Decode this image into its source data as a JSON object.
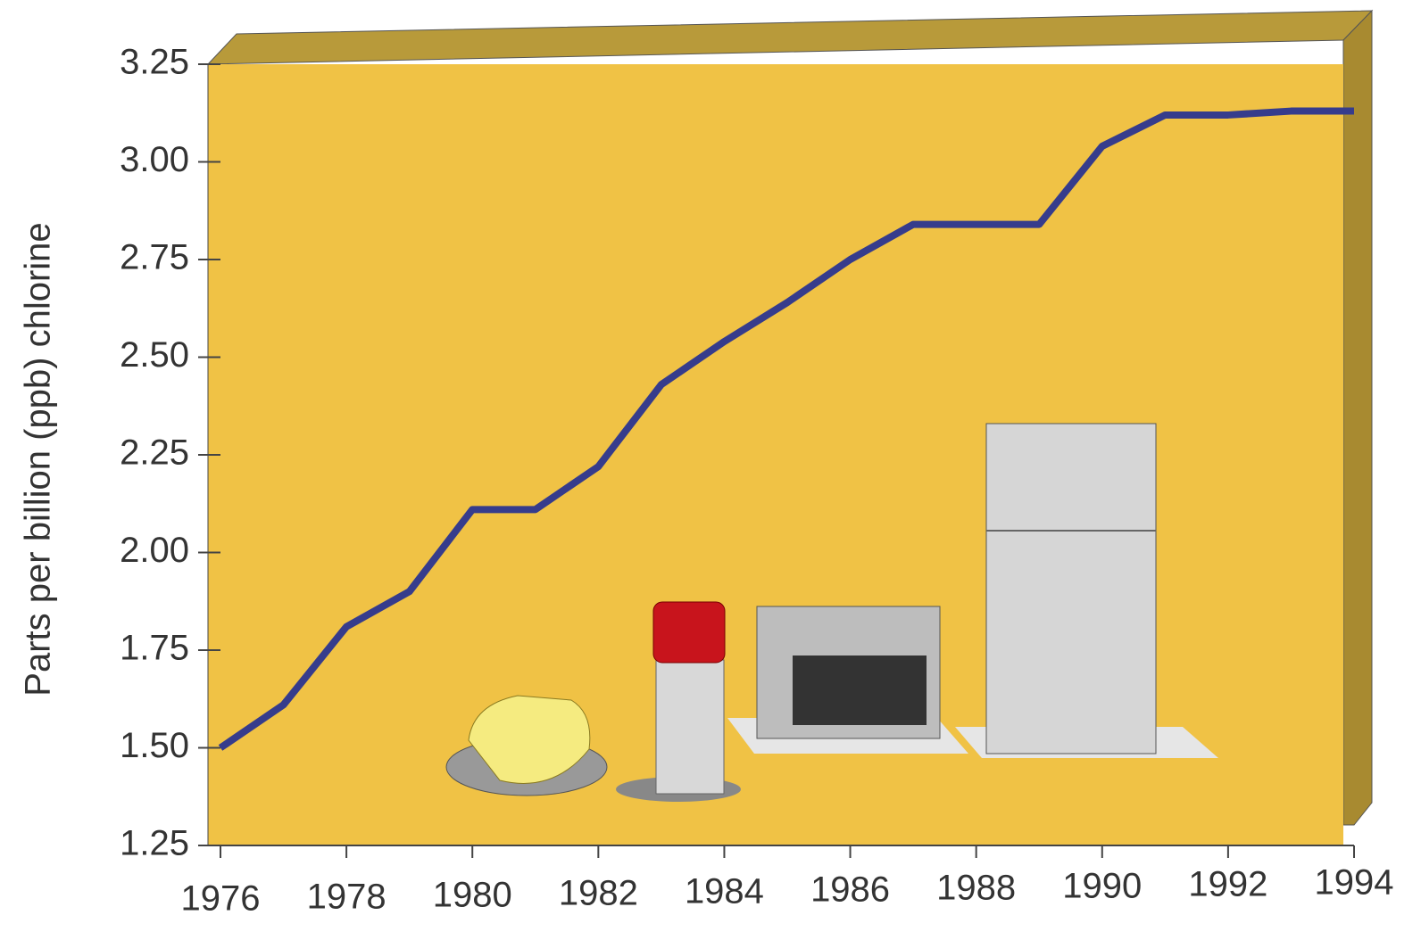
{
  "chart_data": {
    "type": "line",
    "y_label": "Parts per billion (ppb) chlorine",
    "x": [
      1976,
      1977,
      1978,
      1979,
      1980,
      1981,
      1982,
      1983,
      1984,
      1985,
      1986,
      1987,
      1988,
      1989,
      1990,
      1991,
      1992,
      1993,
      1994
    ],
    "series": [
      {
        "color": "#363c8c",
        "values": [
          1.5,
          1.61,
          1.81,
          1.9,
          2.11,
          2.11,
          2.22,
          2.43,
          2.54,
          2.64,
          2.75,
          2.84,
          2.84,
          2.84,
          3.04,
          3.12,
          3.12,
          3.13,
          3.13
        ]
      }
    ],
    "xlim": [
      1976,
      1994
    ],
    "ylim": [
      1.25,
      3.25
    ],
    "xticks": [
      1976,
      1978,
      1980,
      1982,
      1984,
      1986,
      1988,
      1990,
      1992,
      1994
    ],
    "yticks": [
      1.25,
      {
        "value": 1.5,
        "label": "1.50"
      },
      1.75,
      {
        "value": 2,
        "label": "2.00"
      },
      2.25,
      {
        "value": 2.5,
        "label": "2.50"
      },
      2.75,
      {
        "value": 3,
        "label": "3.00"
      },
      3.25
    ]
  }
}
